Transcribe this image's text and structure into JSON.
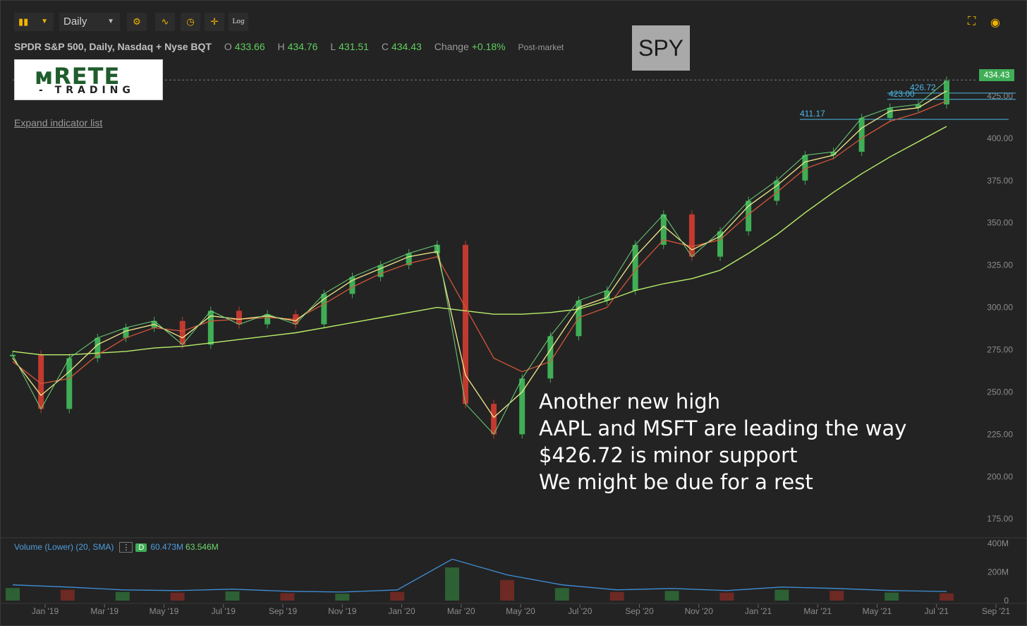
{
  "toolbar": {
    "chart_type_icon": "candles-icon",
    "interval": "Daily",
    "buttons": [
      {
        "name": "settings-gear-icon",
        "glyph": "⚙"
      },
      {
        "name": "indicators-icon",
        "glyph": "∿"
      },
      {
        "name": "clock-icon",
        "glyph": "◷"
      },
      {
        "name": "drawing-tool-icon",
        "glyph": "✛"
      },
      {
        "name": "log-scale-button",
        "glyph": "Log"
      }
    ],
    "fullscreen_icon": "⛶",
    "camera_icon": "◉"
  },
  "legend": {
    "symbol": "SPDR S&P 500, Daily, Nasdaq + Nyse BQT",
    "open_label": "O",
    "open": "433.66",
    "high_label": "H",
    "high": "434.76",
    "low_label": "L",
    "low": "431.51",
    "close_label": "C",
    "close": "434.43",
    "change_label": "Change",
    "change": "+0.18%",
    "session": "Post-market"
  },
  "ticker_box": "SPY",
  "logo": {
    "line1": "ᴍRETE",
    "line2": "- TRADING"
  },
  "expand_indicator": "Expand indicator list",
  "volume_legend": {
    "title": "Volume (Lower) (20, SMA)",
    "menu": "⋮",
    "badge": "D",
    "value1": "60.473M",
    "value2": "63.546M"
  },
  "last_price": "434.43",
  "annotation": [
    "Another new high",
    "AAPL and MSFT are leading the way",
    "$426.72 is minor support",
    "We might be due for a rest"
  ],
  "colors": {
    "up": "#3fae56",
    "down": "#c23a2f",
    "sma_fast": "#f3e98a",
    "sma_mid": "#d4553a",
    "sma_200": "#b9ef6a",
    "support": "#4fb6e6",
    "volume_sma": "#3f8fd6"
  },
  "chart_data": {
    "type": "line",
    "title": "SPDR S&P 500, Daily, Nasdaq + Nyse BQT",
    "price_axis": {
      "ticks": [
        "425.00",
        "400.00",
        "375.00",
        "350.00",
        "325.00",
        "300.00",
        "275.00",
        "250.00",
        "225.00",
        "200.00",
        "175.00"
      ],
      "ylim": [
        168,
        440
      ]
    },
    "x_ticks": [
      "Jan '19",
      "Mar '19",
      "May '19",
      "Jul '19",
      "Sep '19",
      "Nov '19",
      "Jan '20",
      "Mar '20",
      "May '20",
      "Jul '20",
      "Sep '20",
      "Nov '20",
      "Jan '21",
      "Mar '21",
      "May '21",
      "Jul '21",
      "Sep '21"
    ],
    "series": [
      {
        "type": "close-approx",
        "x": [
          "Dec '18",
          "Jan '19",
          "Feb '19",
          "Mar '19",
          "Apr '19",
          "May '19",
          "Jun '19",
          "Jul '19",
          "Aug '19",
          "Sep '19",
          "Oct '19",
          "Nov '19",
          "Dec '19",
          "Jan '20",
          "Feb '20",
          "Feb '20",
          "Mar '20",
          "Mar '20",
          "Apr '20",
          "May '20",
          "Jun '20",
          "Jul '20",
          "Aug '20",
          "Sep '20",
          "Oct '20",
          "Nov '20",
          "Dec '20",
          "Jan '21",
          "Feb '21",
          "Mar '21",
          "Apr '21",
          "May '21",
          "Jun '21",
          "Jul '21"
        ],
        "y": [
          272,
          240,
          270,
          282,
          288,
          292,
          278,
          298,
          290,
          296,
          290,
          308,
          318,
          325,
          332,
          337,
          243,
          225,
          258,
          283,
          304,
          310,
          337,
          355,
          330,
          345,
          363,
          375,
          390,
          392,
          412,
          418,
          420,
          434
        ]
      },
      {
        "name": "",
        "type": "sma-fast",
        "y": [
          270,
          248,
          262,
          278,
          286,
          290,
          282,
          295,
          293,
          295,
          292,
          305,
          316,
          323,
          330,
          333,
          260,
          235,
          250,
          275,
          300,
          306,
          330,
          348,
          334,
          342,
          360,
          372,
          386,
          390,
          406,
          416,
          418,
          428
        ]
      },
      {
        "name": "",
        "type": "sma-mid",
        "y": [
          268,
          255,
          258,
          272,
          282,
          288,
          286,
          292,
          293,
          294,
          293,
          302,
          312,
          320,
          326,
          330,
          300,
          270,
          262,
          268,
          294,
          300,
          322,
          340,
          336,
          340,
          355,
          368,
          382,
          388,
          400,
          410,
          415,
          422
        ]
      },
      {
        "name": "",
        "type": "sma-200",
        "y": [
          274,
          272,
          272,
          273,
          274,
          276,
          277,
          279,
          281,
          283,
          285,
          288,
          291,
          294,
          297,
          300,
          298,
          296,
          296,
          297,
          299,
          304,
          310,
          314,
          317,
          322,
          332,
          343,
          356,
          368,
          379,
          389,
          398,
          407
        ]
      }
    ],
    "support_levels": [
      {
        "label": "426.72",
        "value": 426.72
      },
      {
        "label": "423.00",
        "value": 423.0
      },
      {
        "label": "411.17",
        "value": 411.17
      }
    ],
    "volume": {
      "axis_ticks": [
        "400M",
        "200M",
        "0"
      ],
      "ylim": [
        0,
        400
      ],
      "x": [
        "Dec '18",
        "Feb '19",
        "Apr '19",
        "Jun '19",
        "Aug '19",
        "Oct '19",
        "Dec '19",
        "Feb '20",
        "Mar '20",
        "Apr '20",
        "Jun '20",
        "Aug '20",
        "Oct '20",
        "Dec '20",
        "Feb '21",
        "Apr '21",
        "Jun '21",
        "Jul '21"
      ],
      "sma": [
        110,
        95,
        75,
        70,
        80,
        65,
        60,
        75,
        290,
        180,
        110,
        75,
        85,
        70,
        95,
        85,
        70,
        63.5
      ]
    }
  }
}
